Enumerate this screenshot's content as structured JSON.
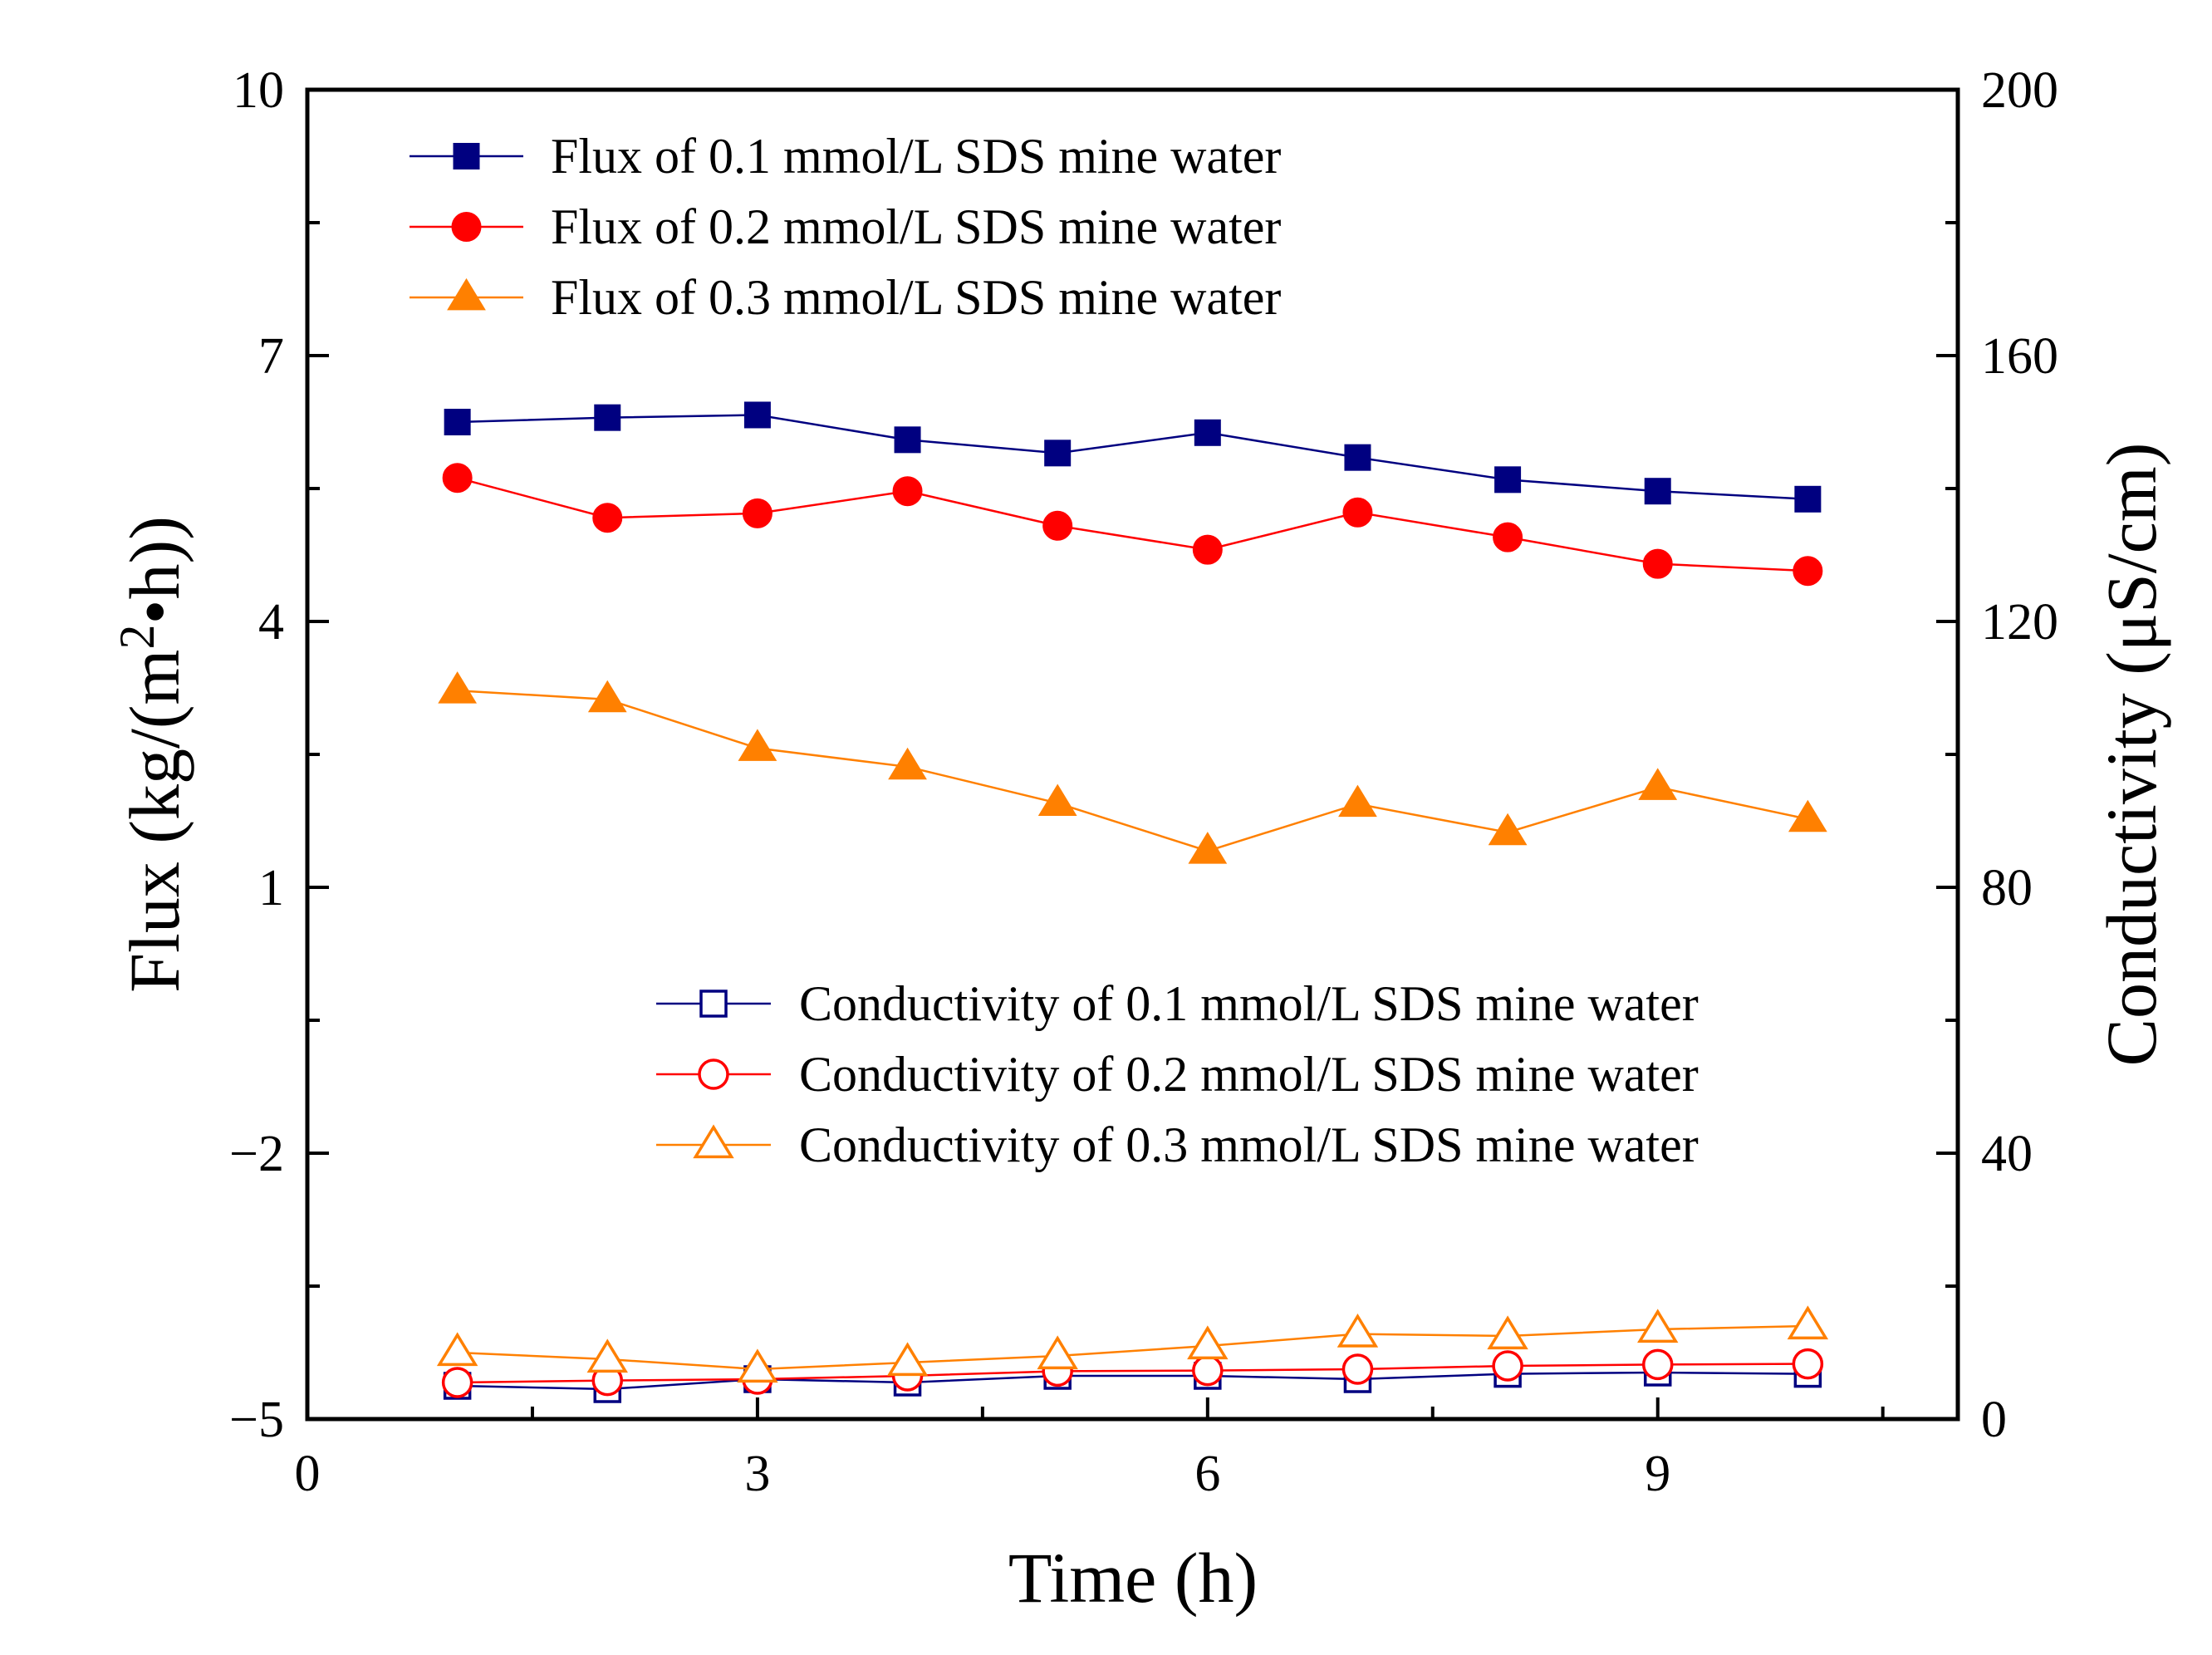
{
  "chart_data": {
    "type": "line",
    "title": "",
    "xlabel": "Time  (h)",
    "ylabel": "Flux  (kg/(m",
    "ylabel_sup": "2",
    "ylabel_tail": "•h))",
    "y2label": "Conductivity  (μS/cm)",
    "xlim": [
      0,
      11
    ],
    "ylim": [
      -5,
      10
    ],
    "y2lim": [
      0,
      200
    ],
    "xticks": [
      0,
      3,
      6,
      9
    ],
    "xtick_labels": [
      "0",
      "3",
      "6",
      "9"
    ],
    "yticks": [
      -5,
      -2,
      1,
      4,
      7,
      10
    ],
    "ytick_labels": [
      "−5",
      "−2",
      "1",
      "4",
      "7",
      "10"
    ],
    "y2ticks": [
      0,
      40,
      80,
      120,
      160,
      200
    ],
    "y2tick_labels": [
      "0",
      "40",
      "80",
      "120",
      "160",
      "200"
    ],
    "x": [
      1,
      2,
      3,
      4,
      5,
      6,
      7,
      8,
      9,
      10
    ],
    "series": [
      {
        "name": "Flux of  0.1  mmol/L SDS  mine water",
        "axis": "left",
        "marker": "square",
        "filled": true,
        "color": "#000080",
        "values": [
          6.25,
          6.3,
          6.33,
          6.05,
          5.9,
          6.13,
          5.85,
          5.6,
          5.47,
          5.38
        ]
      },
      {
        "name": "Flux of  0.2  mmol/L SDS  mine water",
        "axis": "left",
        "marker": "circle",
        "filled": true,
        "color": "#ff0000",
        "values": [
          5.62,
          5.17,
          5.22,
          5.47,
          5.08,
          4.81,
          5.23,
          4.95,
          4.65,
          4.57
        ]
      },
      {
        "name": "Flux of  0.3  mmol/L SDS  mine water",
        "axis": "left",
        "marker": "triangle",
        "filled": true,
        "color": "#ff8000",
        "values": [
          3.22,
          3.12,
          2.57,
          2.36,
          1.95,
          1.41,
          1.94,
          1.62,
          2.13,
          1.77
        ]
      },
      {
        "name": "Conductivity of  0.1  mmol/L SDS  mine water",
        "axis": "right",
        "marker": "square",
        "filled": false,
        "color": "#000080",
        "values": [
          5.0,
          4.5,
          6.0,
          5.5,
          6.5,
          6.5,
          6.0,
          6.8,
          7.0,
          6.8
        ]
      },
      {
        "name": "Conductivity of  0.2  mmol/L SDS  mine water",
        "axis": "right",
        "marker": "circle",
        "filled": false,
        "color": "#ff0000",
        "values": [
          5.5,
          5.8,
          6.0,
          6.5,
          7.2,
          7.3,
          7.5,
          8.0,
          8.2,
          8.3
        ]
      },
      {
        "name": "Conductivity of  0.3  mmol/L SDS  mine water",
        "axis": "right",
        "marker": "triangle",
        "filled": false,
        "color": "#ff8000",
        "values": [
          10.0,
          9.0,
          7.5,
          8.5,
          9.5,
          11.0,
          12.8,
          12.5,
          13.5,
          14.0
        ]
      }
    ],
    "legends": [
      {
        "placement": "top-left",
        "series": [
          0,
          1,
          2
        ]
      },
      {
        "placement": "lower-right",
        "series": [
          3,
          4,
          5
        ]
      }
    ],
    "grid": false
  }
}
